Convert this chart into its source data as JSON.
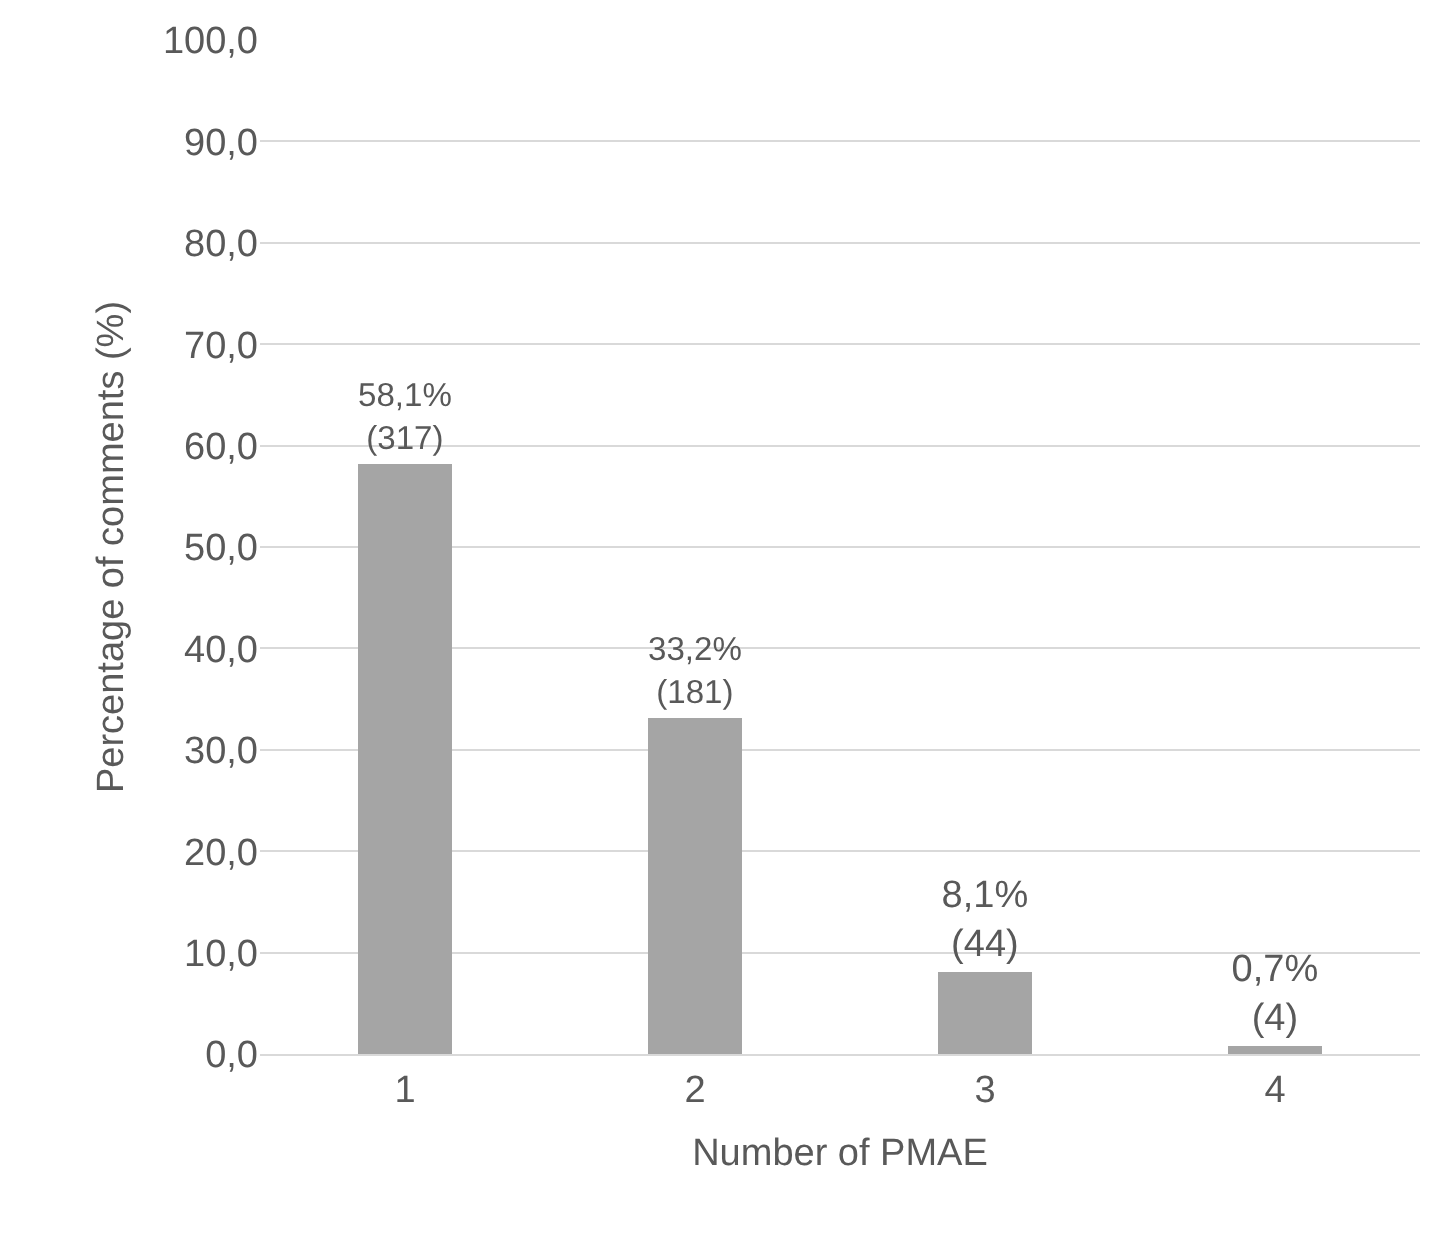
{
  "chart_data": {
    "type": "bar",
    "xlabel": "Number of PMAE",
    "ylabel": "Percentage of comments (%)",
    "categories": [
      "1",
      "2",
      "3",
      "4"
    ],
    "values": [
      58.1,
      33.2,
      8.1,
      0.7
    ],
    "color": "#a5a5a5",
    "value_labels": [
      "58,1%\n(317)",
      "33,2%\n(181)",
      "8,1%\n(44)",
      "0,7%\n(4)"
    ],
    "ylim": [
      0,
      100
    ],
    "yticks": [
      {
        "value": 0,
        "label": "0,0"
      },
      {
        "value": 10,
        "label": "10,0"
      },
      {
        "value": 20,
        "label": "20,0"
      },
      {
        "value": 30,
        "label": "30,0"
      },
      {
        "value": 40,
        "label": "40,0"
      },
      {
        "value": 50,
        "label": "50,0"
      },
      {
        "value": 60,
        "label": "60,0"
      },
      {
        "value": 70,
        "label": "70,0"
      },
      {
        "value": 80,
        "label": "80,0"
      },
      {
        "value": 90,
        "label": "90,0"
      },
      {
        "value": 100,
        "label": "100,0"
      }
    ],
    "grid": "y",
    "legend": false
  }
}
